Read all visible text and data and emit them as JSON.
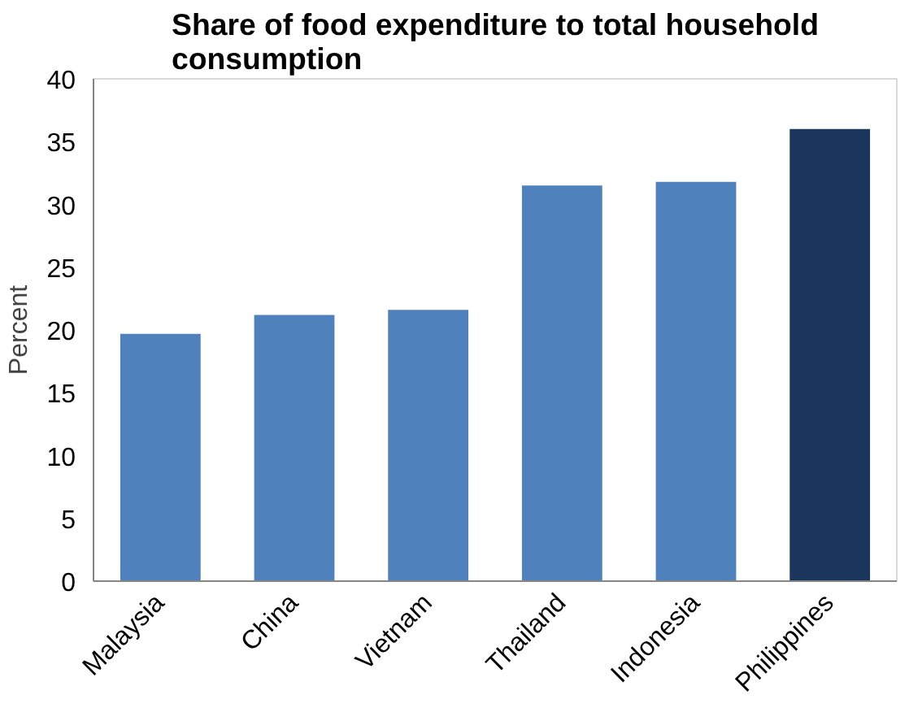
{
  "chart_data": {
    "type": "bar",
    "title": "Share of food expenditure to total household consumption",
    "ylabel": "Percent",
    "categories": [
      "Malaysia",
      "China",
      "Vietnam",
      "Thailand",
      "Indonesia",
      "Philippines"
    ],
    "values": [
      19.7,
      21.2,
      21.6,
      31.5,
      31.8,
      36.0
    ],
    "colors": [
      "#4f81bd",
      "#4f81bd",
      "#4f81bd",
      "#4f81bd",
      "#4f81bd",
      "#1b365d"
    ],
    "ylim": [
      0,
      40
    ],
    "yticks": [
      0,
      5,
      10,
      15,
      20,
      25,
      30,
      35,
      40
    ],
    "grid": false
  }
}
